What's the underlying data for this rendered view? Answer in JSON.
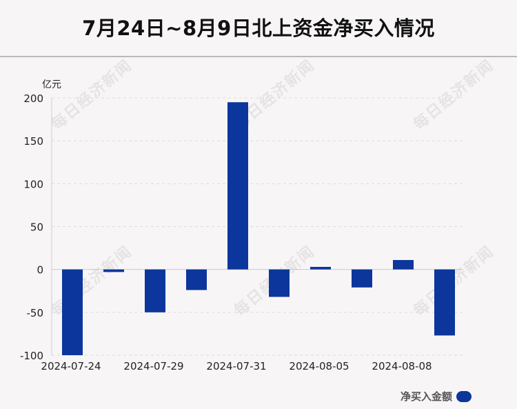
{
  "title": "7月24日~8月9日北上资金净买入情况",
  "unit_label": "亿元",
  "watermark_text": "每日经济新闻",
  "legend_label": "净买入金额",
  "colors": {
    "bar": "#0c369c",
    "background": "#f8f5f6"
  },
  "chart_data": {
    "type": "bar",
    "title": "7月24日~8月9日北上资金净买入情况",
    "ylabel": "亿元",
    "ylim": [
      -100,
      200
    ],
    "yticks": [
      200,
      150,
      100,
      50,
      0,
      -50,
      -100
    ],
    "grid": true,
    "legend_position": "bottom-right",
    "x_tick_labels": [
      "2024-07-24",
      "2024-07-29",
      "2024-07-31",
      "2024-08-05",
      "2024-08-08"
    ],
    "series": [
      {
        "name": "净买入金额",
        "values": [
          -100,
          -3,
          -50,
          -24,
          195,
          -32,
          3,
          -21,
          11,
          -77
        ]
      }
    ]
  }
}
